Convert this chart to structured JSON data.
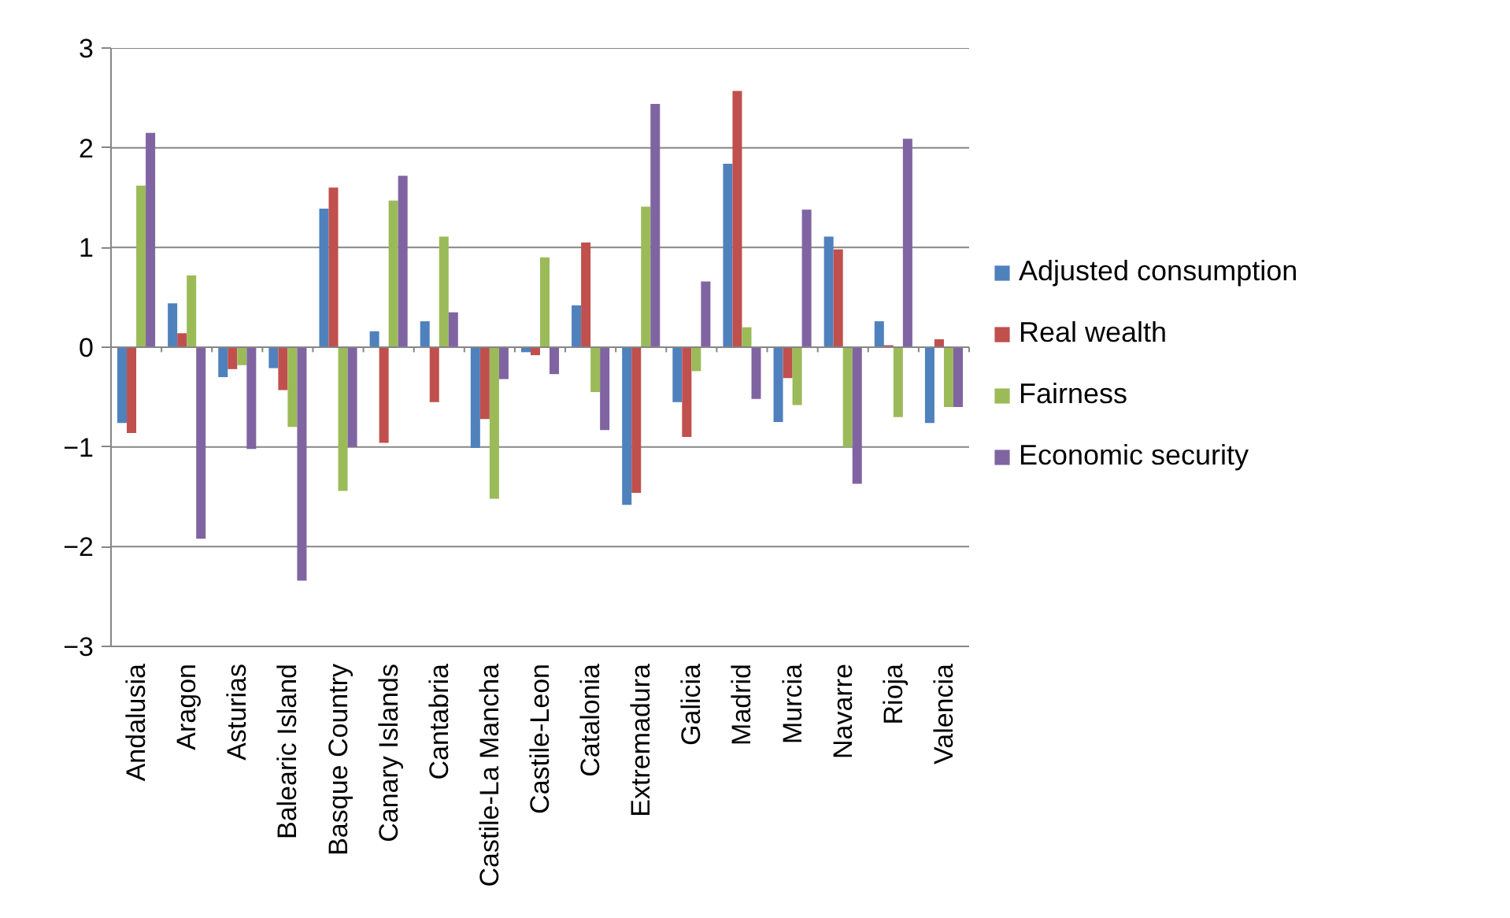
{
  "chart_data": {
    "type": "bar",
    "categories": [
      "Andalusia",
      "Aragon",
      "Asturias",
      "Balearic Island",
      "Basque Country",
      "Canary Islands",
      "Cantabria",
      "Castile-La Mancha",
      "Castile-Leon",
      "Catalonia",
      "Extremadura",
      "Galicia",
      "Madrid",
      "Murcia",
      "Navarre",
      "Rioja",
      "Valencia"
    ],
    "series": [
      {
        "name": "Adjusted consumption",
        "color": "#4f81bd",
        "values": [
          -0.76,
          0.44,
          -0.3,
          -0.21,
          1.39,
          0.16,
          0.26,
          -1.01,
          -0.05,
          0.42,
          -1.58,
          -0.55,
          1.84,
          -0.75,
          1.11,
          0.26,
          -0.76
        ]
      },
      {
        "name": "Real wealth",
        "color": "#c0504d",
        "values": [
          -0.86,
          0.14,
          -0.22,
          -0.43,
          1.6,
          -0.96,
          -0.55,
          -0.72,
          -0.08,
          1.05,
          -1.46,
          -0.9,
          2.57,
          -0.31,
          0.98,
          0.02,
          0.08
        ]
      },
      {
        "name": "Fairness",
        "color": "#9bbb59",
        "values": [
          1.62,
          0.72,
          -0.18,
          -0.8,
          -1.44,
          1.47,
          1.11,
          -1.52,
          0.9,
          -0.45,
          1.41,
          -0.24,
          0.2,
          -0.58,
          -1.0,
          -0.7,
          -0.6
        ]
      },
      {
        "name": "Economic security",
        "color": "#8064a2",
        "values": [
          2.15,
          -1.92,
          -1.02,
          -2.34,
          -1.0,
          1.72,
          0.35,
          -0.32,
          -0.27,
          -0.83,
          2.44,
          0.66,
          -0.52,
          1.38,
          -1.37,
          2.09,
          -0.6
        ]
      }
    ],
    "ylim": [
      -3,
      3
    ],
    "yticks": [
      -3,
      -2,
      -1,
      0,
      1,
      2,
      3
    ],
    "grid": "y",
    "legend": "right"
  }
}
